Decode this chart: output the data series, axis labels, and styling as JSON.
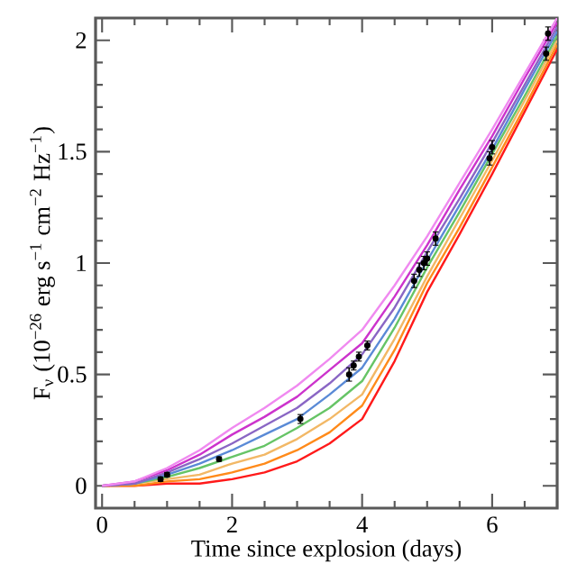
{
  "chart_data": {
    "type": "line",
    "xlabel": "Time since explosion (days)",
    "ylabel": "F$_{ν}$ (10$^{−26}$ erg s$^{−1}$ cm$^{−2}$ Hz$^{−1}$)",
    "x": [
      0,
      0.5,
      1,
      1.5,
      2,
      2.5,
      3,
      3.5,
      4,
      4.5,
      5,
      5.5,
      6,
      6.5,
      7
    ],
    "xlim": [
      -0.1,
      7.0
    ],
    "ylim": [
      -0.1,
      2.1
    ],
    "xticks": [
      0,
      {
        "value": 0.5,
        "label": null
      },
      {
        "value": 1,
        "label": null
      },
      {
        "value": 1.5,
        "label": null
      },
      2,
      {
        "value": 2.5,
        "label": null
      },
      {
        "value": 3,
        "label": null
      },
      {
        "value": 3.5,
        "label": null
      },
      4,
      {
        "value": 4.5,
        "label": null
      },
      {
        "value": 5,
        "label": null
      },
      {
        "value": 5.5,
        "label": null
      },
      6,
      {
        "value": 6.5,
        "label": null
      },
      {
        "value": 7,
        "label": null
      }
    ],
    "yticks": [
      0,
      0.5,
      1,
      1.5,
      2
    ],
    "marker": "none",
    "line_style": "solid",
    "grid": false,
    "series": [
      {
        "color": "#ff1a1a",
        "values": [
          0,
          0,
          0.01,
          0.01,
          0.03,
          0.06,
          0.11,
          0.19,
          0.3,
          0.56,
          0.87,
          1.13,
          1.4,
          1.68,
          1.96
        ]
      },
      {
        "color": "#ff8a1a",
        "values": [
          0,
          0,
          0.02,
          0.03,
          0.06,
          0.1,
          0.16,
          0.24,
          0.36,
          0.61,
          0.91,
          1.16,
          1.43,
          1.7,
          1.98
        ]
      },
      {
        "color": "#f2b866",
        "values": [
          0,
          0.01,
          0.03,
          0.05,
          0.1,
          0.14,
          0.21,
          0.3,
          0.41,
          0.66,
          0.94,
          1.2,
          1.46,
          1.73,
          2.0
        ]
      },
      {
        "color": "#66c466",
        "values": [
          0,
          0.01,
          0.04,
          0.08,
          0.13,
          0.18,
          0.26,
          0.35,
          0.47,
          0.71,
          0.98,
          1.23,
          1.49,
          1.75,
          2.02
        ]
      },
      {
        "color": "#5a8ad6",
        "values": [
          0,
          0.01,
          0.05,
          0.1,
          0.16,
          0.23,
          0.3,
          0.41,
          0.53,
          0.75,
          1.01,
          1.26,
          1.51,
          1.78,
          2.04
        ]
      },
      {
        "color": "#8a66c4",
        "values": [
          0,
          0.01,
          0.06,
          0.12,
          0.19,
          0.27,
          0.35,
          0.46,
          0.59,
          0.8,
          1.05,
          1.29,
          1.54,
          1.8,
          2.06
        ]
      },
      {
        "color": "#cc33cc",
        "values": [
          0,
          0.02,
          0.07,
          0.14,
          0.23,
          0.31,
          0.4,
          0.52,
          0.64,
          0.85,
          1.08,
          1.33,
          1.57,
          1.83,
          2.08
        ]
      },
      {
        "color": "#f08af0",
        "values": [
          0,
          0.02,
          0.08,
          0.16,
          0.26,
          0.35,
          0.45,
          0.57,
          0.7,
          0.9,
          1.12,
          1.36,
          1.6,
          1.85,
          2.1
        ]
      },
      {
        "type": "scatter",
        "color": "#000000",
        "x": [
          0.9,
          1.0,
          1.8,
          3.05,
          3.8,
          3.87,
          3.95,
          4.08,
          4.8,
          4.88,
          4.95,
          5.0,
          5.13,
          5.96,
          6.0,
          6.83,
          6.86
        ],
        "values": [
          0.03,
          0.05,
          0.12,
          0.3,
          0.5,
          0.54,
          0.58,
          0.63,
          0.92,
          0.97,
          1.0,
          1.02,
          1.11,
          1.47,
          1.52,
          1.94,
          2.03
        ],
        "errors": [
          0.01,
          0.01,
          0.01,
          0.02,
          0.03,
          0.02,
          0.02,
          0.02,
          0.03,
          0.03,
          0.03,
          0.03,
          0.03,
          0.03,
          0.03,
          0.03,
          0.03
        ]
      }
    ]
  }
}
